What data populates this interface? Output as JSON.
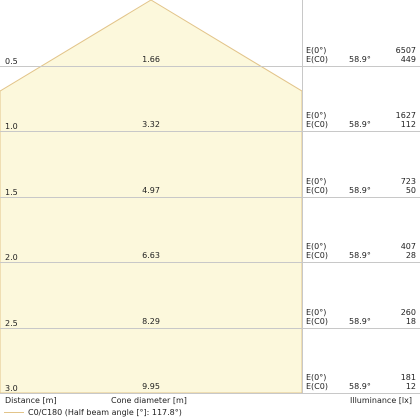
{
  "chart_data": {
    "type": "table",
    "rows": [
      {
        "distance": "0.5",
        "diameter": "1.66",
        "e0_label": "E(0°)",
        "ec0_label": "E(C0)",
        "angle": "58.9°",
        "e0": "6507",
        "ec0": "449"
      },
      {
        "distance": "1.0",
        "diameter": "3.32",
        "e0_label": "E(0°)",
        "ec0_label": "E(C0)",
        "angle": "58.9°",
        "e0": "1627",
        "ec0": "112"
      },
      {
        "distance": "1.5",
        "diameter": "4.97",
        "e0_label": "E(0°)",
        "ec0_label": "E(C0)",
        "angle": "58.9°",
        "e0": "723",
        "ec0": "50"
      },
      {
        "distance": "2.0",
        "diameter": "6.63",
        "e0_label": "E(0°)",
        "ec0_label": "E(C0)",
        "angle": "58.9°",
        "e0": "407",
        "ec0": "28"
      },
      {
        "distance": "2.5",
        "diameter": "8.29",
        "e0_label": "E(0°)",
        "ec0_label": "E(C0)",
        "angle": "58.9°",
        "e0": "260",
        "ec0": "18"
      },
      {
        "distance": "3.0",
        "diameter": "9.95",
        "e0_label": "E(0°)",
        "ec0_label": "E(C0)",
        "angle": "58.9°",
        "e0": "181",
        "ec0": "12"
      }
    ],
    "half_beam_angle_deg": 117.8,
    "max_distance_m": 3.0,
    "colors": {
      "cone_fill": "#fcf8dc",
      "cone_edge": "#e2c48a",
      "grid": "#c8c8c8"
    }
  },
  "footer": {
    "distance_label": "Distance [m]",
    "diameter_label": "Cone diameter [m]",
    "illuminance_label": "Illuminance [lx]"
  },
  "legend": {
    "label": "C0/C180 (Half beam angle [°]: 117.8°)"
  }
}
